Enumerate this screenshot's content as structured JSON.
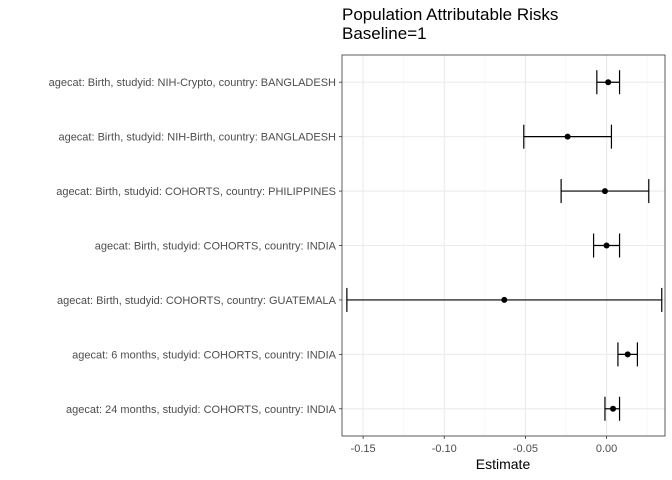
{
  "chart_data": {
    "type": "forest",
    "title": "Population Attributable Risks",
    "subtitle": "Baseline=1",
    "xlabel": "Estimate",
    "ylabel": "",
    "xlim": [
      -0.163,
      0.036
    ],
    "xticks": [
      -0.15,
      -0.1,
      -0.05,
      0.0
    ],
    "xtick_labels": [
      "-0.15",
      "-0.10",
      "-0.05",
      "0.00"
    ],
    "grid": true,
    "theme": "bw",
    "rows": [
      {
        "label": "agecat: Birth, studyid: NIH-Crypto, country: BANGLADESH",
        "estimate": 0.001,
        "lower": -0.006,
        "upper": 0.008
      },
      {
        "label": "agecat: Birth, studyid: NIH-Birth, country: BANGLADESH",
        "estimate": -0.024,
        "lower": -0.051,
        "upper": 0.003
      },
      {
        "label": "agecat: Birth, studyid: COHORTS, country: PHILIPPINES",
        "estimate": -0.001,
        "lower": -0.028,
        "upper": 0.026
      },
      {
        "label": "agecat: Birth, studyid: COHORTS, country: INDIA",
        "estimate": 0.0,
        "lower": -0.008,
        "upper": 0.008
      },
      {
        "label": "agecat: Birth, studyid: COHORTS, country: GUATEMALA",
        "estimate": -0.063,
        "lower": -0.16,
        "upper": 0.034
      },
      {
        "label": "agecat: 6 months, studyid: COHORTS, country: INDIA",
        "estimate": 0.013,
        "lower": 0.007,
        "upper": 0.019
      },
      {
        "label": "agecat: 24 months, studyid: COHORTS, country: INDIA",
        "estimate": 0.004,
        "lower": -0.001,
        "upper": 0.008
      }
    ],
    "colors": {
      "point": "#000000",
      "errorbar": "#000000",
      "grid_major": "#ebebeb",
      "grid_minor": "#f5f5f5",
      "panel_border": "#333333",
      "tick_label": "#4d4d4d"
    }
  }
}
